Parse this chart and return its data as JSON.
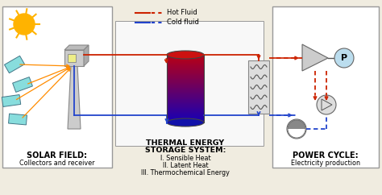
{
  "bg_color": "#f0ece0",
  "box_ec": "#999999",
  "hot_color": "#cc2200",
  "cold_color": "#2244cc",
  "hot_label": "Hot Fluid",
  "cold_label": "Cold fluid",
  "solar_title": "SOLAR FIELD:",
  "solar_sub": "Collectors and receiver",
  "storage_title1": "THERMAL ENERGY",
  "storage_title2": "STORAGE SYSTEM:",
  "storage_sub1": "I. Sensible Heat",
  "storage_sub2": "II. Latent Heat",
  "storage_sub3": "III. Thermochemical Energy",
  "power_title": "POWER CYCLE:",
  "power_sub": "Electricity production",
  "sun_color": "#FFB300",
  "ray_color": "#FF8C00",
  "tower_color": "#cccccc",
  "mirror_color": "#88dddd",
  "tank_top_color": "#cc1111",
  "tank_bot_color": "#2222aa",
  "hx_color": "#dddddd",
  "turb_color": "#cccccc",
  "gen_color": "#bbddee",
  "pump_color": "#dddddd",
  "motor_color": "#bbbbbb"
}
